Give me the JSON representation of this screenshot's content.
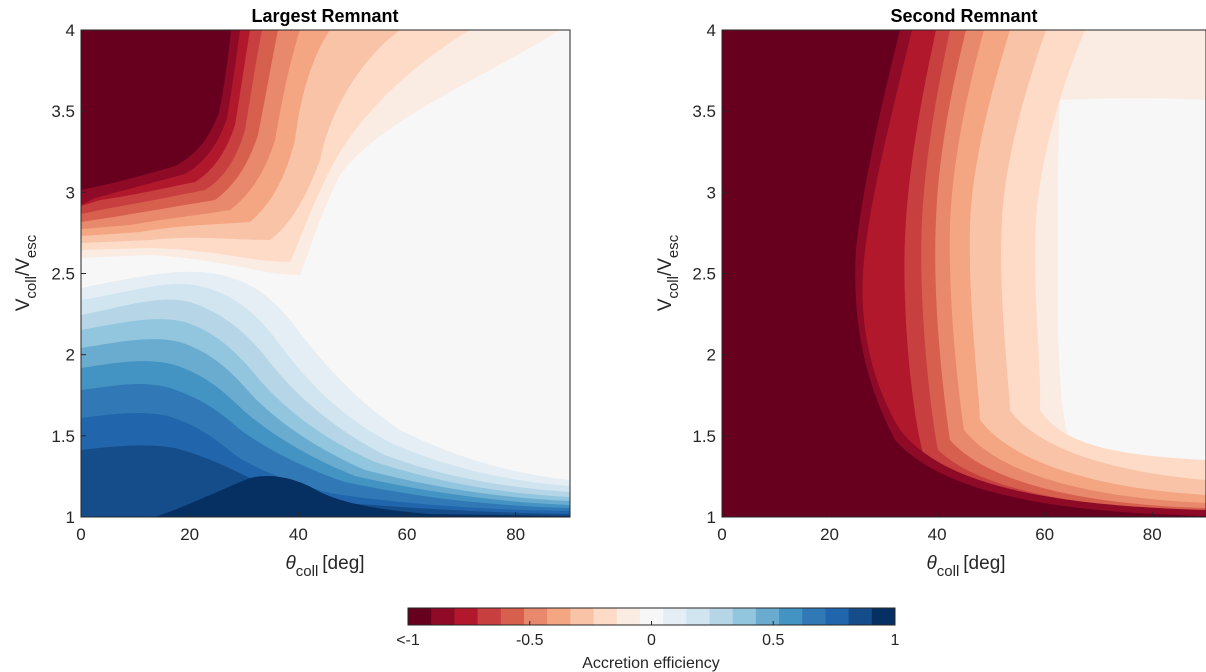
{
  "chart_data": [
    {
      "type": "heatmap",
      "title": "Largest Remnant",
      "xlabel_symbol": "θ",
      "xlabel_sub": "coll",
      "xlabel_unit": "[deg]",
      "ylabel_main": "V",
      "ylabel_sub1": "coll",
      "ylabel_sep": "/V",
      "ylabel_sub2": "esc",
      "xlim": [
        0,
        90
      ],
      "ylim": [
        1,
        4
      ],
      "xticks": [
        0,
        20,
        40,
        60,
        80
      ],
      "yticks": [
        1,
        1.5,
        2,
        2.5,
        3,
        3.5,
        4
      ],
      "ytick_labels": [
        "1",
        "1.5",
        "2",
        "2.5",
        "3",
        "3.5",
        "4"
      ],
      "grid": false,
      "sampled_efficiency": {
        "x": [
          0,
          15,
          30,
          45,
          60,
          75,
          90
        ],
        "y": [
          1,
          1.5,
          2,
          2.5,
          3,
          3.5,
          4
        ],
        "z": [
          [
            0.85,
            0.9,
            1.0,
            0.9,
            0.6,
            0.5,
            0.5
          ],
          [
            0.7,
            0.6,
            0.6,
            0.1,
            -0.05,
            -0.05,
            -0.05
          ],
          [
            0.45,
            0.35,
            0.2,
            0.05,
            0.0,
            0.0,
            0.0
          ],
          [
            -0.15,
            -0.05,
            -0.1,
            -0.1,
            0.0,
            0.0,
            0.0
          ],
          [
            -0.95,
            -0.75,
            -0.5,
            -0.2,
            -0.05,
            0.0,
            0.0
          ],
          [
            -1.0,
            -1.0,
            -0.75,
            -0.3,
            -0.05,
            0.0,
            0.0
          ],
          [
            -1.0,
            -1.0,
            -0.85,
            -0.35,
            -0.1,
            0.0,
            0.0
          ]
        ]
      }
    },
    {
      "type": "heatmap",
      "title": "Second Remnant",
      "xlabel_symbol": "θ",
      "xlabel_sub": "coll",
      "xlabel_unit": "[deg]",
      "ylabel_main": "V",
      "ylabel_sub1": "coll",
      "ylabel_sep": "/V",
      "ylabel_sub2": "esc",
      "xlim": [
        0,
        90
      ],
      "ylim": [
        1,
        4
      ],
      "xticks": [
        0,
        20,
        40,
        60,
        80
      ],
      "yticks": [
        1,
        1.5,
        2,
        2.5,
        3,
        3.5,
        4
      ],
      "ytick_labels": [
        "1",
        "1.5",
        "2",
        "2.5",
        "3",
        "3.5",
        "4"
      ],
      "grid": false,
      "sampled_efficiency": {
        "x": [
          0,
          15,
          30,
          45,
          60,
          75,
          90
        ],
        "y": [
          1,
          1.5,
          2,
          2.5,
          3,
          3.5,
          4
        ],
        "z": [
          [
            -1.0,
            -1.0,
            -1.0,
            -1.0,
            -0.95,
            -0.95,
            -0.95
          ],
          [
            -1.0,
            -1.0,
            -0.7,
            -0.25,
            -0.1,
            -0.05,
            -0.05
          ],
          [
            -1.0,
            -1.0,
            -0.8,
            -0.4,
            -0.15,
            -0.05,
            -0.05
          ],
          [
            -1.0,
            -1.0,
            -0.85,
            -0.45,
            -0.15,
            -0.05,
            -0.05
          ],
          [
            -1.0,
            -1.0,
            -0.85,
            -0.45,
            -0.15,
            -0.05,
            -0.05
          ],
          [
            -1.0,
            -1.0,
            -0.85,
            -0.4,
            -0.12,
            -0.05,
            -0.05
          ],
          [
            -1.0,
            -1.0,
            -0.85,
            -0.35,
            -0.1,
            -0.05,
            -0.05
          ]
        ]
      }
    }
  ],
  "colorbar": {
    "label": "Accretion efficiency",
    "range": [
      -1,
      1
    ],
    "ticks": [
      -1,
      -0.5,
      0,
      0.5,
      1
    ],
    "tick_labels": [
      "<-1",
      "-0.5",
      "0",
      "0.5",
      "1"
    ],
    "colors": [
      "#67001f",
      "#8e0a26",
      "#b2182b",
      "#c83f3f",
      "#d6604d",
      "#e8886c",
      "#f4a582",
      "#f8c3a7",
      "#fddbc7",
      "#fbece3",
      "#f7f7f7",
      "#e5eef4",
      "#d1e5f0",
      "#b6d6e8",
      "#92c5de",
      "#6aacd0",
      "#4393c3",
      "#3079b6",
      "#2166ac",
      "#154d8a",
      "#053061"
    ]
  },
  "colorbar_text": {
    "label": "Accretion efficiency"
  }
}
